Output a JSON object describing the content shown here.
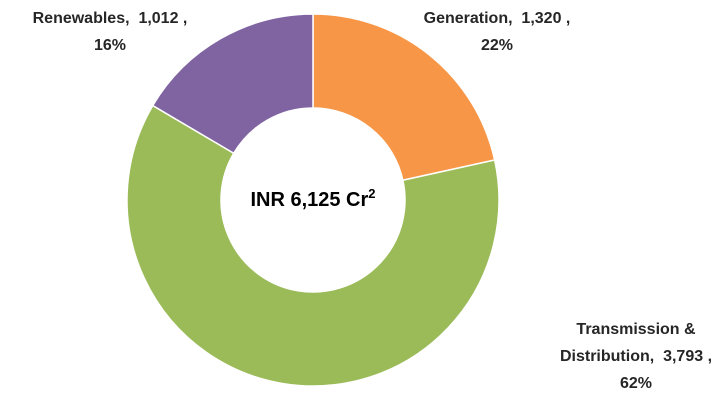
{
  "chart_data": {
    "type": "donut",
    "center_label": {
      "text": "INR 6,125 Cr",
      "superscript": "2"
    },
    "categories": [
      "Generation,",
      "Transmission & Distribution,",
      "Renewables,"
    ],
    "values": [
      1320,
      3793,
      1012
    ],
    "value_labels": [
      "1,320 ,",
      "3,793 ,",
      "1,012 ,"
    ],
    "percentages": [
      22,
      62,
      16
    ],
    "percent_labels": [
      "22%",
      "62%",
      "16%"
    ],
    "colors": [
      "#f79646",
      "#9bbb59",
      "#8064a2"
    ]
  }
}
